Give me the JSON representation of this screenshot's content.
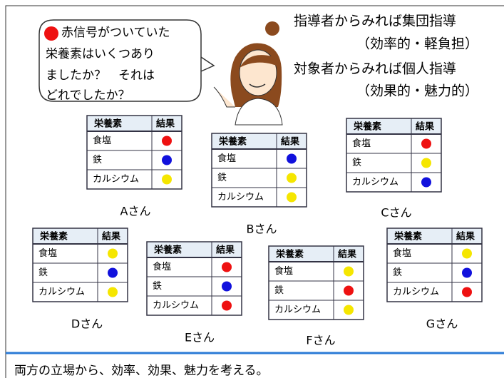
{
  "bubble": {
    "lines": [
      "赤信号がついていた",
      "栄養素はいくつあり",
      "ましたか？　それは",
      "どれでしたか？"
    ]
  },
  "headline": {
    "lines": [
      "指導者からみれば集団指導",
      "（効率的・軽負担）",
      "対象者からみれば個人指導",
      "（効果的・魅力的）"
    ]
  },
  "tables": [
    {
      "person": "Aさん",
      "header": [
        "栄養素",
        "結果"
      ],
      "rows": [
        {
          "name": "食塩",
          "dot": "#ee1111"
        },
        {
          "name": "鉄",
          "dot": "#1111dd"
        },
        {
          "name": "カルシウム",
          "dot": "#f5e600"
        }
      ]
    },
    {
      "person": "Bさん",
      "header": [
        "栄養素",
        "結果"
      ],
      "rows": [
        {
          "name": "食塩",
          "dot": "#1111dd"
        },
        {
          "name": "鉄",
          "dot": "#f5e600"
        },
        {
          "name": "カルシウム",
          "dot": "#f5e600"
        }
      ]
    },
    {
      "person": "Cさん",
      "header": [
        "栄養素",
        "結果"
      ],
      "rows": [
        {
          "name": "食塩",
          "dot": "#ee1111"
        },
        {
          "name": "鉄",
          "dot": "#f5e600"
        },
        {
          "name": "カルシウム",
          "dot": "#1111dd"
        }
      ]
    },
    {
      "person": "Dさん",
      "header": [
        "栄養素",
        "結果"
      ],
      "rows": [
        {
          "name": "食塩",
          "dot": "#f5e600"
        },
        {
          "name": "鉄",
          "dot": "#1111dd"
        },
        {
          "name": "カルシウム",
          "dot": "#f5e600"
        }
      ]
    },
    {
      "person": "Eさん",
      "header": [
        "栄養素",
        "結果"
      ],
      "rows": [
        {
          "name": "食塩",
          "dot": "#ee1111"
        },
        {
          "name": "鉄",
          "dot": "#1111dd"
        },
        {
          "name": "カルシウム",
          "dot": "#ee1111"
        }
      ]
    },
    {
      "person": "Fさん",
      "header": [
        "栄養素",
        "結果"
      ],
      "rows": [
        {
          "name": "食塩",
          "dot": "#f5e600"
        },
        {
          "name": "鉄",
          "dot": "#ee1111"
        },
        {
          "name": "カルシウム",
          "dot": "#f5e600"
        }
      ]
    },
    {
      "person": "Gさん",
      "header": [
        "栄養素",
        "結果"
      ],
      "rows": [
        {
          "name": "食塩",
          "dot": "#f5e600"
        },
        {
          "name": "鉄",
          "dot": "#1111dd"
        },
        {
          "name": "カルシウム",
          "dot": "#ee1111"
        }
      ]
    }
  ],
  "footer": "両方の立場から、効率、効果、魅力を考える。"
}
